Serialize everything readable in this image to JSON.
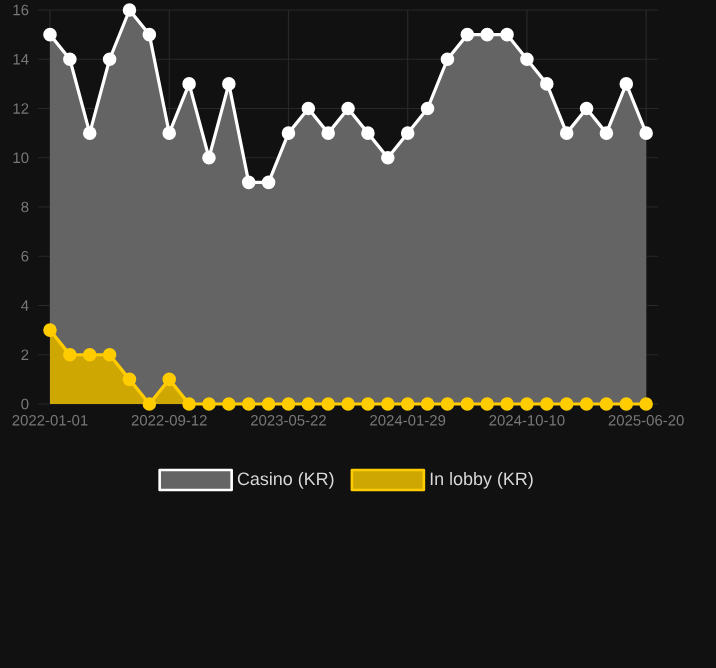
{
  "chart_data": {
    "type": "area",
    "categories": [
      "2022-01-01",
      null,
      null,
      null,
      null,
      null,
      "2022-09-12",
      null,
      null,
      null,
      null,
      null,
      "2023-05-22",
      null,
      null,
      null,
      null,
      null,
      "2024-01-29",
      null,
      null,
      null,
      null,
      null,
      "2024-10-10",
      null,
      null,
      null,
      null,
      null,
      "2025-06-20"
    ],
    "series": [
      {
        "name": "In lobby (KR)",
        "color": "#ffcc00",
        "values": [
          3,
          2,
          2,
          2,
          1,
          0,
          1,
          0,
          0,
          0,
          0,
          0,
          0,
          0,
          0,
          0,
          0,
          0,
          0,
          0,
          0,
          0,
          0,
          0,
          0,
          0,
          0,
          0,
          0,
          0,
          0
        ]
      },
      {
        "name": "Casino (KR)",
        "color": "#ffffff",
        "values": [
          15,
          14,
          11,
          14,
          16,
          15,
          11,
          13,
          10,
          13,
          9,
          9,
          11,
          12,
          11,
          12,
          11,
          10,
          11,
          12,
          14,
          15,
          15,
          15,
          14,
          13,
          11,
          12,
          11,
          13,
          11
        ]
      }
    ],
    "ylim": [
      0,
      16
    ],
    "yticks": [
      0,
      2,
      4,
      6,
      8,
      10,
      12,
      14,
      16
    ],
    "grid": true,
    "legend": "bottom",
    "marker": "circle"
  }
}
